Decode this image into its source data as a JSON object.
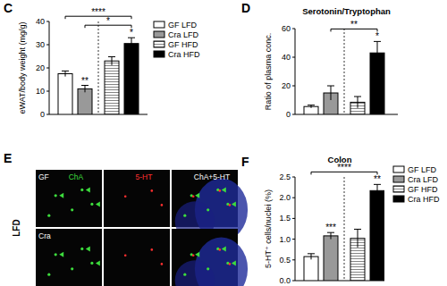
{
  "chart_data": [
    {
      "type": "bar",
      "panel_label": "C",
      "ylabel": "eWAT/body weight (mg/g)",
      "categories": [
        null
      ],
      "series": [
        {
          "name": "GF LFD",
          "color": "#ffffff",
          "values": [
            17.5
          ],
          "errors": [
            1.2
          ]
        },
        {
          "name": "Cra LFD",
          "color": "#999999",
          "values": [
            11
          ],
          "errors": [
            1.5
          ]
        },
        {
          "name": "GF HFD",
          "color": "#ffffff",
          "marker": "hatch",
          "values": [
            23
          ],
          "errors": [
            1.8
          ]
        },
        {
          "name": "Cra HFD",
          "color": "#000000",
          "values": [
            30.5
          ],
          "errors": [
            2.5
          ]
        }
      ],
      "ylim": [
        0,
        40
      ],
      "yticks": [
        0,
        10,
        20,
        30,
        40
      ],
      "tick_labels": "y",
      "legend": "right",
      "annotations": [
        {
          "text": "**",
          "series": 1
        },
        {
          "text": "*",
          "series": 3
        },
        {
          "text": "*",
          "from": 1,
          "to": 3
        },
        {
          "text": "****",
          "from": 0,
          "to": 3
        }
      ]
    },
    {
      "type": "bar",
      "panel_label": "D",
      "title": "Serotonin/Tryptophan",
      "ylabel": "Ratio of plasma conc.",
      "categories": [
        null
      ],
      "series": [
        {
          "color": "#ffffff",
          "values": [
            5.5
          ],
          "errors": [
            1
          ]
        },
        {
          "color": "#999999",
          "values": [
            15
          ],
          "errors": [
            5
          ]
        },
        {
          "color": "#ffffff",
          "marker": "hatch",
          "values": [
            8.5
          ],
          "errors": [
            4
          ]
        },
        {
          "color": "#000000",
          "values": [
            43
          ],
          "errors": [
            8
          ]
        }
      ],
      "ylim": [
        0,
        60
      ],
      "yticks": [
        0,
        20,
        40,
        60
      ],
      "tick_labels": "y",
      "annotations": [
        {
          "text": "*",
          "series": 3
        },
        {
          "text": "**",
          "from": 1,
          "to": 3
        }
      ]
    },
    {
      "type": "bar",
      "panel_label": "F",
      "title": "Colon",
      "ylabel": "5-HT⁺ cells/nuclei (%)",
      "categories": [
        null
      ],
      "series": [
        {
          "name": "GF LFD",
          "color": "#ffffff",
          "values": [
            0.58
          ],
          "errors": [
            0.07
          ]
        },
        {
          "name": "Cra LFD",
          "color": "#999999",
          "values": [
            1.08
          ],
          "errors": [
            0.08
          ]
        },
        {
          "name": "GF HFD",
          "color": "#ffffff",
          "marker": "hatch",
          "values": [
            1.02
          ],
          "errors": [
            0.22
          ]
        },
        {
          "name": "Cra HFD",
          "color": "#000000",
          "values": [
            2.17
          ],
          "errors": [
            0.15
          ]
        }
      ],
      "ylim": [
        0,
        2.5
      ],
      "yticks": [
        {
          "value": 0,
          "label": "0.0"
        },
        0.5,
        {
          "value": 1,
          "label": "1.0"
        },
        1.5,
        {
          "value": 2,
          "label": "2.0"
        },
        2.5
      ],
      "tick_labels": "y",
      "legend": "right",
      "annotations": [
        {
          "text": "***",
          "series": 1
        },
        {
          "text": "**",
          "series": 3
        },
        {
          "text": "****",
          "from": 0,
          "to": 3
        }
      ]
    }
  ],
  "image_panel": {
    "panel_label": "E",
    "row_group": "LFD",
    "rows": [
      "GF",
      "Cra"
    ],
    "columns": [
      "ChA",
      "5-HT",
      "ChA+5-HT"
    ]
  }
}
